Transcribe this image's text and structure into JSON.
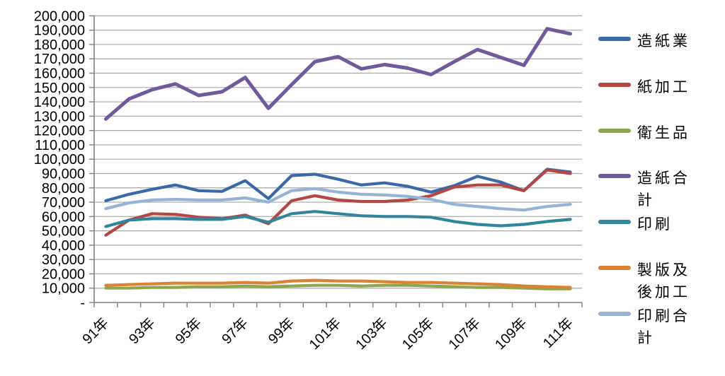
{
  "chart_data": {
    "type": "line",
    "title": "",
    "xlabel": "",
    "ylabel": "",
    "ylim": [
      0,
      200000
    ],
    "y_tick_interval": 10000,
    "grid": "horizontal",
    "legend_position": "right",
    "y_tick_labels": [
      "200,000",
      "190,000",
      "180,000",
      "170,000",
      "160,000",
      "150,000",
      "140,000",
      "130,000",
      "120,000",
      "110,000",
      "100,000",
      "90,000",
      "80,000",
      "70,000",
      "60,000",
      "50,000",
      "40,000",
      "30,000",
      "20,000",
      "10,000",
      "-"
    ],
    "x_tick_labels": [
      "91年",
      "93年",
      "95年",
      "97年",
      "99年",
      "101年",
      "103年",
      "105年",
      "107年",
      "109年",
      "111年"
    ],
    "categories": [
      "91年",
      "92年",
      "93年",
      "94年",
      "95年",
      "96年",
      "97年",
      "98年",
      "99年",
      "100年",
      "101年",
      "102年",
      "103年",
      "104年",
      "105年",
      "106年",
      "107年",
      "108年",
      "109年",
      "110年",
      "111年"
    ],
    "series": [
      {
        "name": "造紙業",
        "color": "#3A68A8",
        "values": [
          71000,
          75500,
          79000,
          82000,
          78000,
          77500,
          85000,
          72500,
          88500,
          89500,
          86000,
          82000,
          83500,
          81000,
          77000,
          81500,
          88000,
          84000,
          78000,
          93000,
          91000
        ]
      },
      {
        "name": "紙加工",
        "color": "#B24743",
        "values": [
          47000,
          57500,
          62000,
          61500,
          59500,
          58500,
          61000,
          55000,
          71000,
          74500,
          71500,
          70500,
          70500,
          71500,
          74500,
          80500,
          82000,
          82000,
          78000,
          92500,
          90000
        ]
      },
      {
        "name": "衛生品",
        "color": "#8CA64E",
        "values": [
          10000,
          10000,
          10500,
          10500,
          11000,
          11000,
          11500,
          11000,
          11500,
          12000,
          12000,
          11500,
          12000,
          12000,
          11500,
          11000,
          10500,
          10500,
          10000,
          9500,
          9500
        ]
      },
      {
        "name": "造紙合計",
        "color": "#6F5A9B",
        "values": [
          128000,
          142000,
          148500,
          152500,
          144500,
          147000,
          157000,
          135500,
          152000,
          168000,
          171500,
          163000,
          166000,
          163500,
          159000,
          168000,
          176500,
          171000,
          165500,
          191000,
          187500
        ]
      },
      {
        "name": "印刷",
        "color": "#31859C",
        "values": [
          53000,
          57500,
          58500,
          58500,
          58000,
          58000,
          60000,
          56000,
          62000,
          63500,
          62000,
          60500,
          60000,
          60000,
          59500,
          56500,
          54500,
          53500,
          54500,
          56500,
          58000
        ]
      },
      {
        "name": "製版及後加工",
        "color": "#DB8333",
        "values": [
          12000,
          12500,
          13000,
          13500,
          13500,
          13500,
          14000,
          13500,
          15000,
          15500,
          15000,
          15000,
          14500,
          14000,
          14000,
          13500,
          13000,
          12500,
          11500,
          11000,
          10500
        ]
      },
      {
        "name": "印刷合計",
        "color": "#95B3D7",
        "values": [
          65500,
          69500,
          71500,
          72000,
          71500,
          71500,
          73000,
          70000,
          78000,
          79500,
          77000,
          75500,
          75000,
          74000,
          72000,
          68500,
          67000,
          65500,
          64500,
          67000,
          68500
        ]
      }
    ],
    "colors": {
      "gridline": "#A6A6A6",
      "axis": "#808080",
      "text": "#000000"
    }
  }
}
